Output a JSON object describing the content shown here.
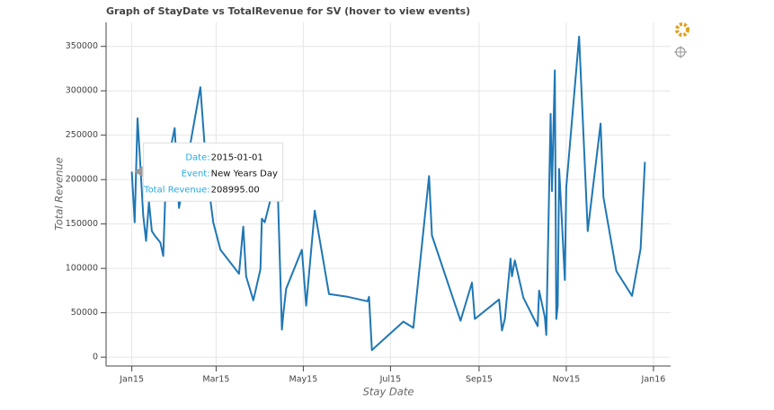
{
  "chart_data": {
    "type": "line",
    "title": "Graph of StayDate vs TotalRevenue for SV (hover to view events)",
    "x_label": "Stay Date",
    "y_label": "Total Revenue",
    "x": [
      "2015-01-01",
      "2015-01-03",
      "2015-01-05",
      "2015-01-07",
      "2015-01-09",
      "2015-01-11",
      "2015-01-13",
      "2015-01-15",
      "2015-01-17",
      "2015-01-21",
      "2015-01-23",
      "2015-01-25",
      "2015-01-31",
      "2015-02-03",
      "2015-02-18",
      "2015-02-22",
      "2015-02-27",
      "2015-03-04",
      "2015-03-17",
      "2015-03-20",
      "2015-03-22",
      "2015-03-27",
      "2015-04-01",
      "2015-04-02",
      "2015-04-04",
      "2015-04-10",
      "2015-04-13",
      "2015-04-16",
      "2015-04-17",
      "2015-04-19",
      "2015-04-30",
      "2015-05-03",
      "2015-05-09",
      "2015-05-19",
      "2015-06-01",
      "2015-06-15",
      "2015-06-16",
      "2015-06-18",
      "2015-07-10",
      "2015-07-17",
      "2015-07-28",
      "2015-07-30",
      "2015-08-19",
      "2015-08-27",
      "2015-08-29",
      "2015-09-15",
      "2015-09-17",
      "2015-09-19",
      "2015-09-23",
      "2015-09-24",
      "2015-09-26",
      "2015-10-02",
      "2015-10-12",
      "2015-10-13",
      "2015-10-17",
      "2015-10-18",
      "2015-10-21",
      "2015-10-22",
      "2015-10-24",
      "2015-10-25",
      "2015-10-26",
      "2015-10-27",
      "2015-10-29",
      "2015-10-31",
      "2015-11-01",
      "2015-11-10",
      "2015-11-16",
      "2015-11-25",
      "2015-11-27",
      "2015-12-06",
      "2015-12-17",
      "2015-12-23",
      "2015-12-26"
    ],
    "series": [
      {
        "color": "#1f77b4",
        "values": [
          208995,
          152000,
          269000,
          215000,
          160000,
          131000,
          175000,
          142000,
          137000,
          129000,
          114000,
          210000,
          258000,
          168000,
          304000,
          215000,
          152000,
          121000,
          94000,
          147000,
          91000,
          64000,
          99000,
          156000,
          152000,
          190000,
          194000,
          31000,
          48000,
          77000,
          121000,
          58000,
          165000,
          71000,
          68000,
          63000,
          68000,
          8000,
          40000,
          33000,
          204000,
          137000,
          41000,
          84000,
          43000,
          65000,
          30000,
          43000,
          111000,
          91000,
          109000,
          67000,
          35000,
          75000,
          45000,
          25000,
          274000,
          187000,
          323000,
          43000,
          58000,
          212000,
          150000,
          87000,
          191000,
          361000,
          142000,
          263000,
          180000,
          97000,
          69000,
          122000,
          220000
        ]
      }
    ],
    "xlim": [
      "2014-12-14",
      "2016-01-13"
    ],
    "xticks": [
      {
        "value": "2015-01-01",
        "label": "Jan15"
      },
      {
        "value": "2015-03-01",
        "label": "Mar15"
      },
      {
        "value": "2015-05-01",
        "label": "May15"
      },
      {
        "value": "2015-07-01",
        "label": "Jul15"
      },
      {
        "value": "2015-09-01",
        "label": "Sep15"
      },
      {
        "value": "2015-11-01",
        "label": "Nov15"
      },
      {
        "value": "2016-01-01",
        "label": "Jan16"
      }
    ],
    "ylim": [
      -10000,
      377000
    ],
    "yticks": [
      0,
      50000,
      100000,
      150000,
      200000,
      250000,
      300000,
      350000
    ],
    "grid": true,
    "tooltip": {
      "date_label": "Date:",
      "event_label": "Event:",
      "event": "New Years Day",
      "revenue_label": "Total Revenue:",
      "revenue": "208995.00"
    }
  }
}
